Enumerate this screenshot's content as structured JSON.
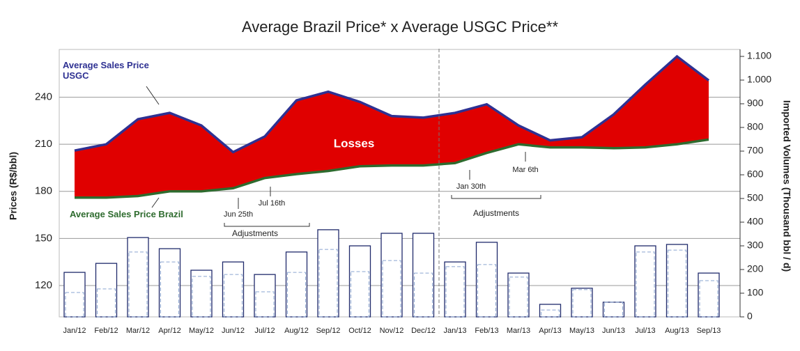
{
  "chart_data": {
    "type": "area-bar",
    "title": "Average Brazil Price* x Average USGC Price**",
    "y_label": "Prices (R$/bbl)",
    "y2_label": "Imported Volumes (Thousand bbl / d)",
    "categories": [
      "Jan/12",
      "Feb/12",
      "Mar/12",
      "Apr/12",
      "May/12",
      "Jun/12",
      "Jul/12",
      "Aug/12",
      "Sep/12",
      "Oct/12",
      "Nov/12",
      "Dec/12",
      "Jan/13",
      "Feb/13",
      "Mar/13",
      "Apr/13",
      "May/13",
      "Jun/13",
      "Jul/13",
      "Aug/13",
      "Sep/13"
    ],
    "series": [
      {
        "name": "Average Sales Price USGC",
        "color": "#2e3192",
        "values": [
          206,
          210,
          226,
          230,
          222,
          205,
          215,
          238,
          243.5,
          237,
          228,
          227,
          230,
          235.5,
          222,
          212.5,
          214.5,
          229,
          248,
          266,
          250.7
        ]
      },
      {
        "name": "Average Sales Price Brazil",
        "color": "#2e6b2e",
        "values": [
          176,
          176,
          177,
          180,
          180,
          182,
          188.5,
          191,
          193,
          196,
          196.5,
          196.5,
          198,
          204.5,
          210,
          208,
          208,
          207.5,
          208,
          210,
          213
        ]
      },
      {
        "axis": "y2",
        "color": "#1f2a6b",
        "values": [
          188,
          226,
          335,
          288,
          197,
          232,
          179,
          274,
          368,
          300,
          353,
          353,
          232,
          315,
          185,
          53,
          121,
          62,
          300,
          306,
          185
        ]
      },
      {
        "axis": "y2",
        "color": "#8aa5d0",
        "values": [
          103,
          118,
          274,
          232,
          171,
          179,
          106,
          188,
          285,
          191,
          238,
          185,
          212,
          221,
          168,
          29,
          115,
          62,
          274,
          282,
          153
        ]
      }
    ],
    "fill_color": "#e00000",
    "ylim": [
      100,
      266
    ],
    "yticks": [
      120,
      150,
      180,
      210,
      240
    ],
    "y2lim": [
      0,
      1100
    ],
    "y2ticks": [
      0,
      100,
      200,
      300,
      400,
      500,
      600,
      700,
      800,
      900,
      {
        "value": 1000,
        "label": "1.000"
      },
      {
        "value": 1100,
        "label": "1.100"
      }
    ],
    "grid": true,
    "annotations": {
      "losses": "Losses",
      "jun": "Jun 25th",
      "jul": "Jul 16th",
      "adj1": "Adjustments",
      "jan": "Jan 30th",
      "mar": "Mar 6th",
      "adj2": "Adjustments"
    }
  }
}
